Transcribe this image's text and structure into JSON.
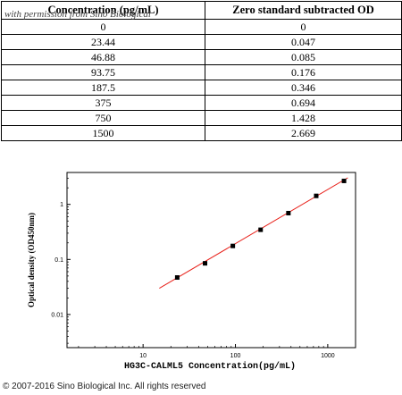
{
  "table": {
    "headers": [
      "Concentration (pg/mL)",
      "Zero standard subtracted OD"
    ],
    "rows": [
      [
        "0",
        "0"
      ],
      [
        "23.44",
        "0.047"
      ],
      [
        "46.88",
        "0.085"
      ],
      [
        "93.75",
        "0.176"
      ],
      [
        "187.5",
        "0.346"
      ],
      [
        "375",
        "0.694"
      ],
      [
        "750",
        "1.428"
      ],
      [
        "1500",
        "2.669"
      ]
    ]
  },
  "watermark": "with permission from Sino Biological",
  "copyright": "© 2007-2016 Sino Biological Inc. All rights reserved",
  "chart_data": {
    "type": "scatter",
    "x": [
      23.44,
      46.88,
      93.75,
      187.5,
      375,
      750,
      1500
    ],
    "y": [
      0.047,
      0.085,
      0.176,
      0.346,
      0.694,
      1.428,
      2.669
    ],
    "fit_line": {
      "x": [
        15,
        1650
      ],
      "y": [
        0.03,
        3.05
      ],
      "color": "#e8201a"
    },
    "marker_color": "#000000",
    "xlabel": "HG3C-CALML5 Concentration(pg/mL)",
    "ylabel": "Optical density (OD450nm)",
    "xscale": "log",
    "yscale": "log",
    "xlim": [
      1.5,
      2000
    ],
    "ylim": [
      0.0025,
      3.8
    ],
    "xticks": [
      10,
      100,
      1000
    ],
    "xtick_labels": [
      "10",
      "100",
      "1000"
    ],
    "yticks": [
      0.01,
      0.1,
      1
    ],
    "ytick_labels": [
      "0.01",
      "0.1",
      "1"
    ],
    "grid": false
  }
}
